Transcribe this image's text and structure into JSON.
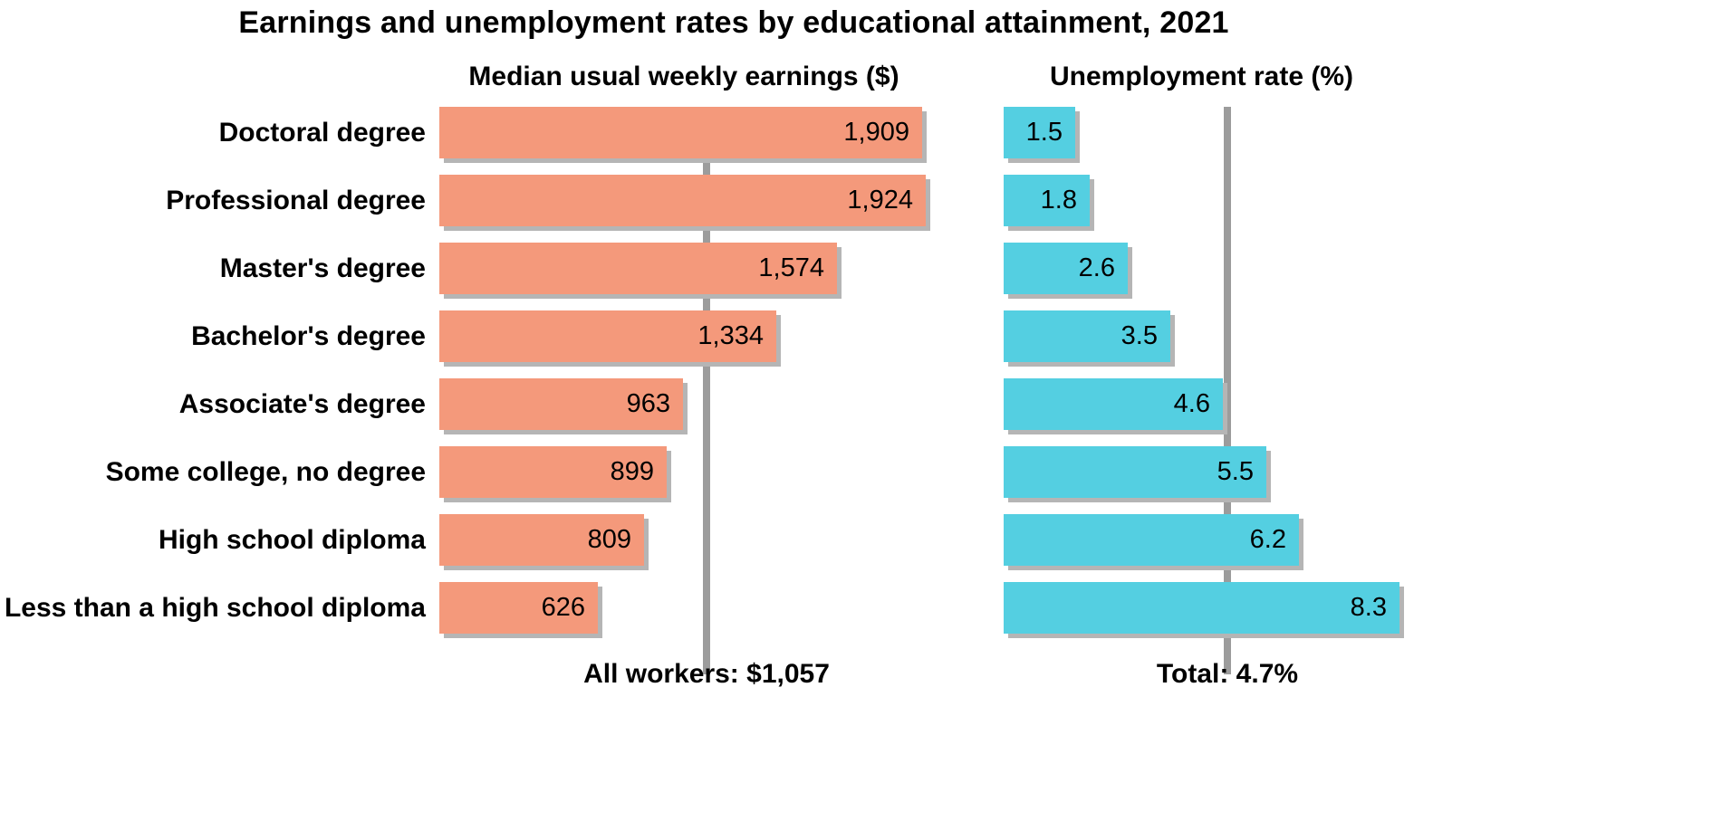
{
  "title": "Earnings and unemployment rates by educational attainment, 2021",
  "chart_data": {
    "type": "bar",
    "orientation": "horizontal",
    "title": "Earnings and unemployment rates by educational attainment, 2021",
    "categories": [
      "Doctoral degree",
      "Professional degree",
      "Master's degree",
      "Bachelor's degree",
      "Associate's degree",
      "Some college, no degree",
      "High school diploma",
      "Less than a high school diploma"
    ],
    "series": [
      {
        "name": "Median usual weekly earnings ($)",
        "values": [
          1909,
          1924,
          1574,
          1334,
          963,
          899,
          809,
          626
        ],
        "value_labels": [
          "1,909",
          "1,924",
          "1,574",
          "1,334",
          "963",
          "899",
          "809",
          "626"
        ],
        "color": "#F4997B",
        "xmax": 1924,
        "reference": {
          "value": 1057,
          "label": "All workers: $1,057"
        }
      },
      {
        "name": "Unemployment rate (%)",
        "values": [
          1.5,
          1.8,
          2.6,
          3.5,
          4.6,
          5.5,
          6.2,
          8.3
        ],
        "value_labels": [
          "1.5",
          "1.8",
          "2.6",
          "3.5",
          "4.6",
          "5.5",
          "6.2",
          "8.3"
        ],
        "color": "#54CFE1",
        "xmax": 8.3,
        "reference": {
          "value": 4.7,
          "label": "Total: 4.7%"
        }
      }
    ],
    "legend_position": "none",
    "grid": false,
    "bar_shadow_color": "#B5B5B5",
    "reference_line_color": "#9C9C9C",
    "text_color": "#000000",
    "background_color": "#FFFFFF"
  }
}
